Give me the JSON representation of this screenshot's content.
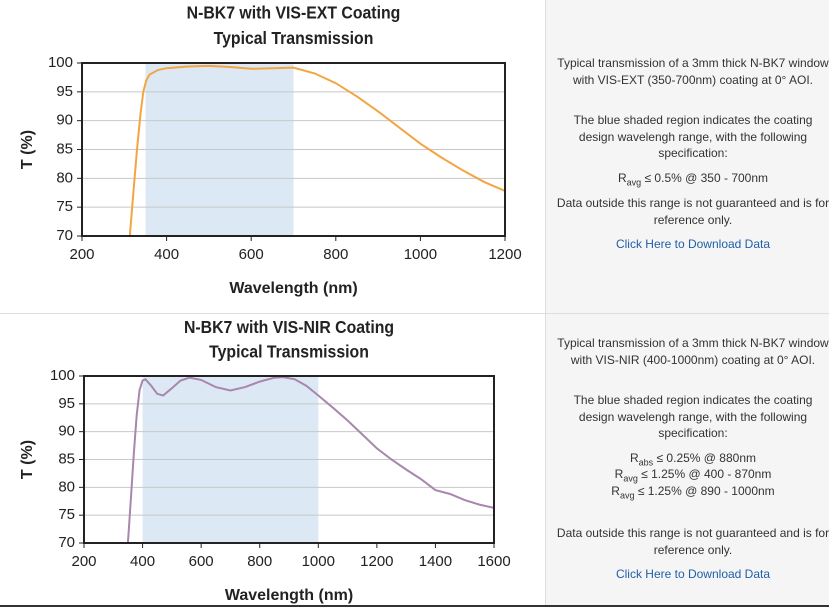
{
  "chart_data": [
    {
      "type": "line",
      "title": "N-BK7 with VIS-EXT Coating",
      "subtitle": "Typical Transmission",
      "x_label": "Wavelength (nm)",
      "y_label": "T (%)",
      "x": [
        313,
        322,
        330,
        338,
        345,
        352,
        360,
        380,
        400,
        450,
        500,
        550,
        600,
        650,
        700,
        750,
        800,
        850,
        900,
        950,
        1000,
        1050,
        1100,
        1150,
        1200
      ],
      "values": [
        70,
        78,
        85,
        91,
        95,
        97,
        98,
        98.8,
        99.1,
        99.4,
        99.5,
        99.3,
        99,
        99.1,
        99.2,
        98.2,
        96.5,
        94.2,
        91.6,
        88.8,
        86,
        83.6,
        81.4,
        79.4,
        77.8
      ],
      "color": "#f2a541",
      "shaded_range": [
        350,
        700
      ],
      "shade_color": "#dce9f5",
      "xlim": [
        200,
        1200
      ],
      "ylim": [
        70,
        100
      ],
      "xticks": [
        200,
        400,
        600,
        800,
        1000,
        1200
      ],
      "yticks": [
        70,
        75,
        80,
        85,
        90,
        95,
        100
      ],
      "grid": true
    },
    {
      "type": "line",
      "title": "N-BK7 with VIS-NIR Coating",
      "subtitle": "Typical Transmission",
      "x_label": "Wavelength (nm)",
      "y_label": "T (%)",
      "x": [
        350,
        360,
        370,
        380,
        390,
        400,
        410,
        430,
        450,
        470,
        500,
        530,
        560,
        600,
        650,
        700,
        750,
        800,
        850,
        880,
        920,
        960,
        1000,
        1050,
        1100,
        1150,
        1200,
        1250,
        1300,
        1350,
        1400,
        1450,
        1500,
        1550,
        1600
      ],
      "values": [
        70,
        78,
        86,
        93,
        97.5,
        99.2,
        99.4,
        98.2,
        96.8,
        96.5,
        97.8,
        99.2,
        99.7,
        99.3,
        98,
        97.4,
        98,
        99,
        99.7,
        99.8,
        99.4,
        98.2,
        96.5,
        94.3,
        92,
        89.5,
        87,
        85,
        83.2,
        81.5,
        79.5,
        78.8,
        77.7,
        76.9,
        76.3
      ],
      "color": "#a886ae",
      "shaded_range": [
        400,
        1000
      ],
      "shade_color": "#dce9f5",
      "xlim": [
        200,
        1600
      ],
      "ylim": [
        70,
        100
      ],
      "xticks": [
        200,
        400,
        600,
        800,
        1000,
        1200,
        1400,
        1600
      ],
      "yticks": [
        70,
        75,
        80,
        85,
        90,
        95,
        100
      ],
      "grid": true
    }
  ],
  "panels": [
    {
      "description": "Typical transmission of a 3mm thick N-BK7 window with VIS-EXT (350-700nm) coating at 0° AOI.",
      "note": "The blue shaded region indicates the coating design wavelengh range, with the following specification:",
      "specs": [
        {
          "symbol": "R",
          "sub": "avg",
          "text": "≤ 0.5% @ 350 - 700nm"
        }
      ],
      "disclaimer": "Data outside this range is not guaranteed and is for reference only.",
      "link": "Click Here to Download Data"
    },
    {
      "description": "Typical transmission of a 3mm thick N-BK7 window with VIS-NIR (400-1000nm) coating at 0° AOI.",
      "note": "The blue shaded region indicates the coating design wavelengh range, with the following specification:",
      "specs": [
        {
          "symbol": "R",
          "sub": "abs",
          "text": "≤ 0.25% @ 880nm"
        },
        {
          "symbol": "R",
          "sub": "avg",
          "text": "≤ 1.25% @ 400 - 870nm"
        },
        {
          "symbol": "R",
          "sub": "avg",
          "text": "≤ 1.25% @ 890 - 1000nm"
        }
      ],
      "disclaimer": "Data outside this range is not guaranteed and is for reference only.",
      "link": "Click Here to Download Data"
    }
  ]
}
